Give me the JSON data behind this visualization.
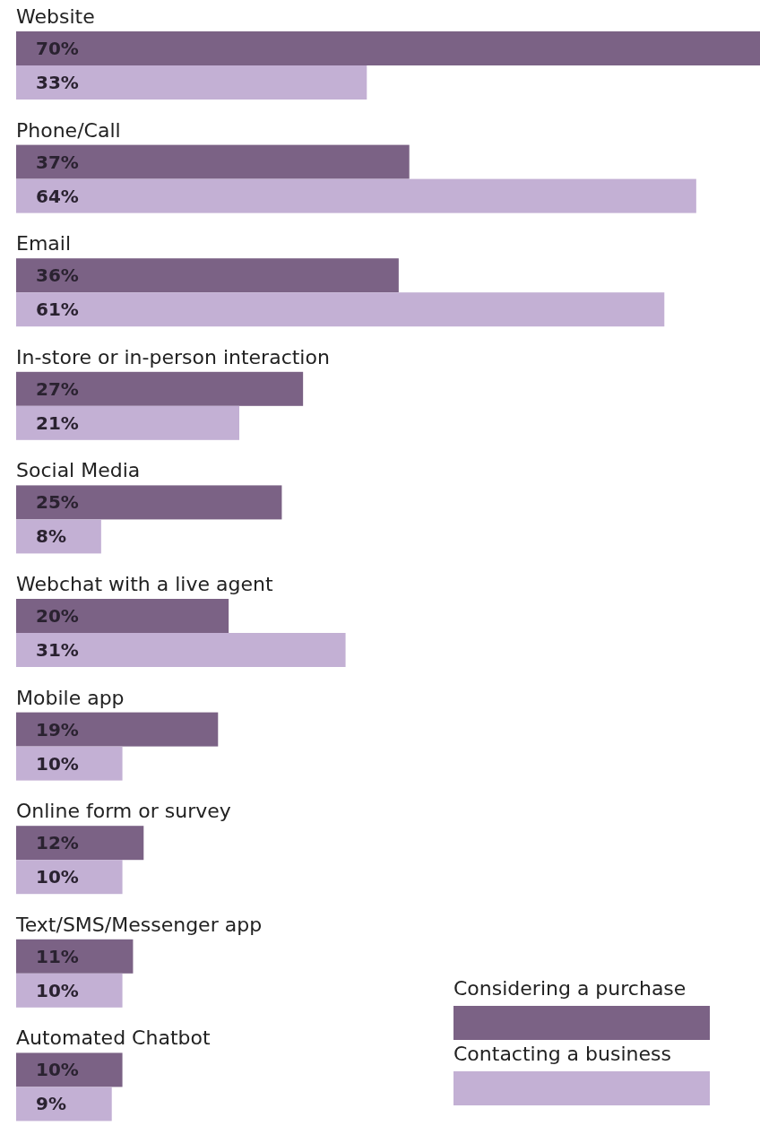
{
  "chart_data": {
    "type": "bar",
    "orientation": "horizontal",
    "categories": [
      "Website",
      "Phone/Call",
      "Email",
      "In-store or in-person interaction",
      "Social Media",
      "Webchat with a live agent",
      "Mobile app",
      "Online form or survey",
      "Text/SMS/Messenger app",
      "Automated Chatbot"
    ],
    "series": [
      {
        "name": "Considering a purchase",
        "color": "#7b6285",
        "values": [
          70,
          37,
          36,
          27,
          25,
          20,
          19,
          12,
          11,
          10
        ],
        "value_labels": [
          "70%",
          "37%",
          "36%",
          "27%",
          "25%",
          "20%",
          "19%",
          "12%",
          "11%",
          "10%"
        ]
      },
      {
        "name": "Contacting a business",
        "color": "#c3b0d4",
        "values": [
          33,
          64,
          61,
          21,
          8,
          31,
          10,
          10,
          10,
          9
        ],
        "value_labels": [
          "33%",
          "64%",
          "61%",
          "21%",
          "8%",
          "31%",
          "10%",
          "10%",
          "10%",
          "9%"
        ]
      }
    ],
    "legend": "bottom right"
  }
}
